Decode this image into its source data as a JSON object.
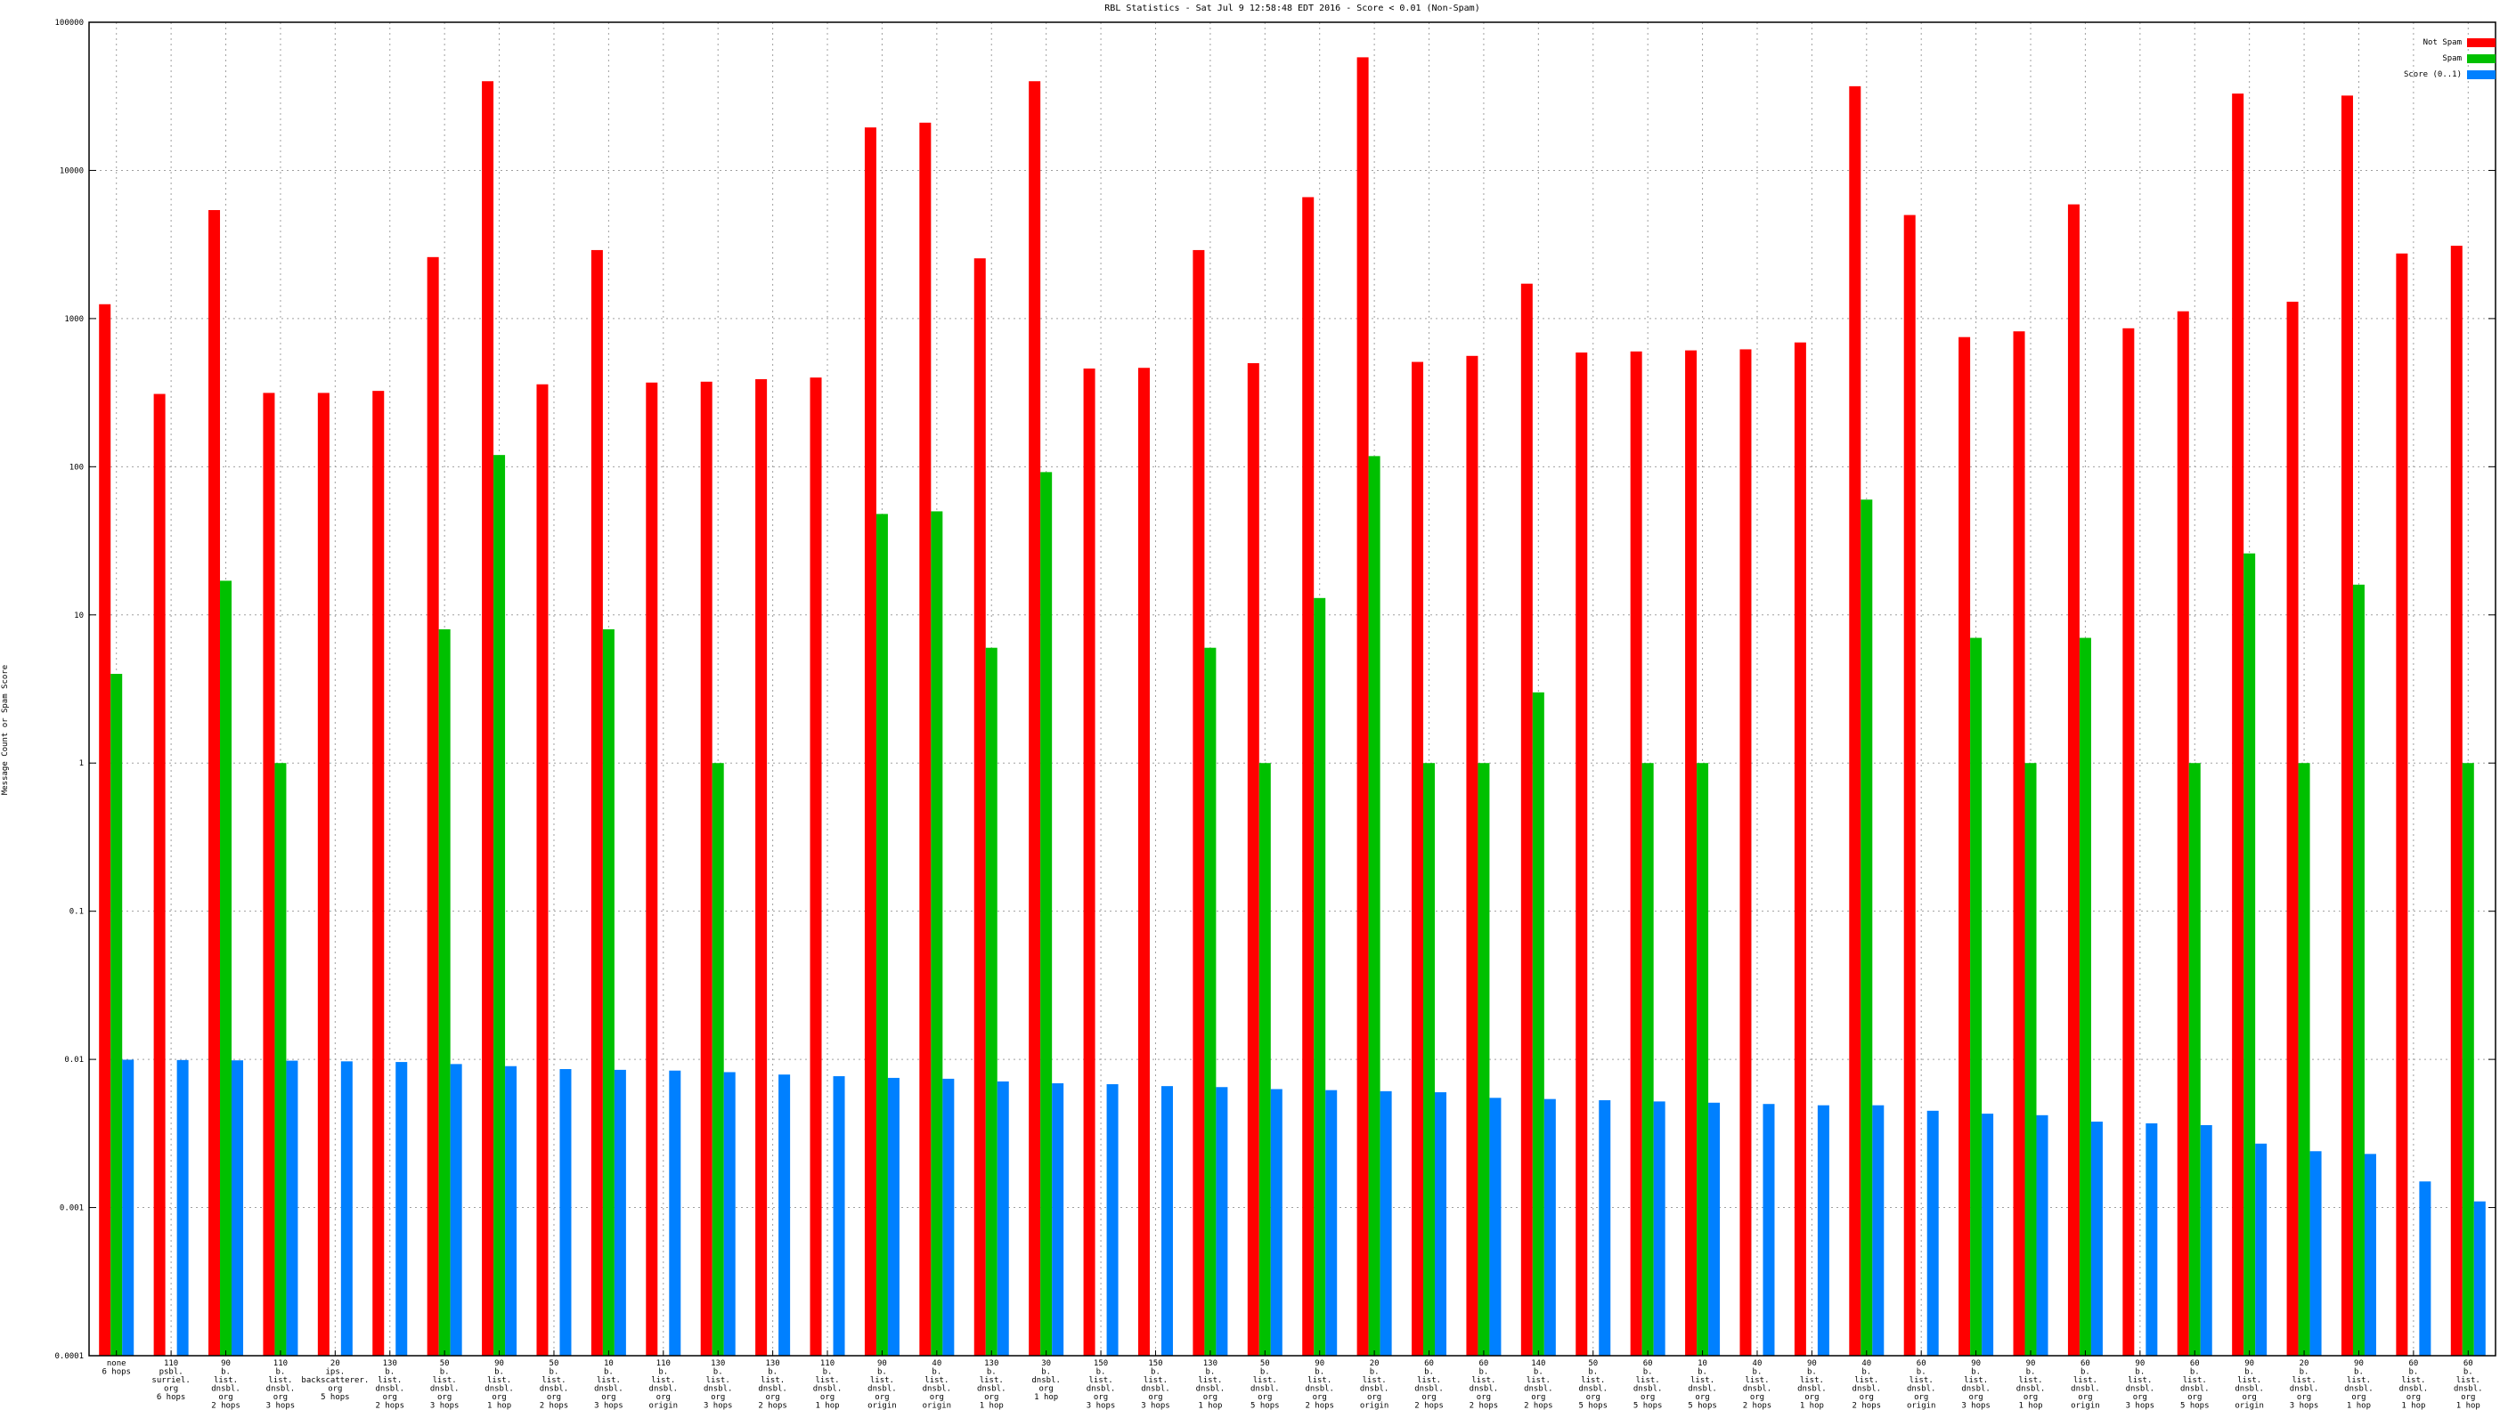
{
  "chart_data": {
    "type": "bar",
    "title": "RBL Statistics - Sat Jul  9 12:58:48 EDT 2016 - Score < 0.01 (Non-Spam)",
    "ylabel": "Message Count or Spam Score",
    "xlabel": "",
    "yscale": "log",
    "ylim": [
      0.0001,
      100000
    ],
    "yticks": [
      "0.0001",
      "0.001",
      "0.01",
      "0.1",
      "1",
      "10",
      "100",
      "1000",
      "10000",
      "100000"
    ],
    "grid": true,
    "legend_position": "top-right",
    "categories": [
      [
        "none",
        "6 hops"
      ],
      [
        "110",
        "psbl.",
        "surriel.",
        "org",
        "6 hops"
      ],
      [
        "90",
        "b.",
        "list.",
        "dnsbl.",
        "org",
        "2 hops"
      ],
      [
        "110",
        "b.",
        "list.",
        "dnsbl.",
        "org",
        "3 hops"
      ],
      [
        "20",
        "ips.",
        "backscatterer.",
        "org",
        "5 hops"
      ],
      [
        "130",
        "b.",
        "list.",
        "dnsbl.",
        "org",
        "2 hops"
      ],
      [
        "50",
        "b.",
        "list.",
        "dnsbl.",
        "org",
        "3 hops"
      ],
      [
        "90",
        "b.",
        "list.",
        "dnsbl.",
        "org",
        "1 hop"
      ],
      [
        "50",
        "b.",
        "list.",
        "dnsbl.",
        "org",
        "2 hops"
      ],
      [
        "10",
        "b.",
        "list.",
        "dnsbl.",
        "org",
        "3 hops"
      ],
      [
        "110",
        "b.",
        "list.",
        "dnsbl.",
        "org",
        "origin"
      ],
      [
        "130",
        "b.",
        "list.",
        "dnsbl.",
        "org",
        "3 hops"
      ],
      [
        "130",
        "b.",
        "list.",
        "dnsbl.",
        "org",
        "2 hops"
      ],
      [
        "110",
        "b.",
        "list.",
        "dnsbl.",
        "org",
        "1 hop"
      ],
      [
        "90",
        "b.",
        "list.",
        "dnsbl.",
        "org",
        "origin"
      ],
      [
        "40",
        "b.",
        "list.",
        "dnsbl.",
        "org",
        "origin"
      ],
      [
        "130",
        "b.",
        "list.",
        "dnsbl.",
        "org",
        "1 hop"
      ],
      [
        "30",
        "b.",
        "dnsbl.",
        "org",
        "1 hop"
      ],
      [
        "150",
        "b.",
        "list.",
        "dnsbl.",
        "org",
        "3 hops"
      ],
      [
        "150",
        "b.",
        "list.",
        "dnsbl.",
        "org",
        "3 hops"
      ],
      [
        "130",
        "b.",
        "list.",
        "dnsbl.",
        "org",
        "1 hop"
      ],
      [
        "50",
        "b.",
        "list.",
        "dnsbl.",
        "org",
        "5 hops"
      ],
      [
        "90",
        "b.",
        "list.",
        "dnsbl.",
        "org",
        "2 hops"
      ],
      [
        "20",
        "b.",
        "list.",
        "dnsbl.",
        "org",
        "origin"
      ],
      [
        "60",
        "b.",
        "list.",
        "dnsbl.",
        "org",
        "2 hops"
      ],
      [
        "60",
        "b.",
        "list.",
        "dnsbl.",
        "org",
        "2 hops"
      ],
      [
        "140",
        "b.",
        "list.",
        "dnsbl.",
        "org",
        "2 hops"
      ],
      [
        "50",
        "b.",
        "list.",
        "dnsbl.",
        "org",
        "5 hops"
      ],
      [
        "60",
        "b.",
        "list.",
        "dnsbl.",
        "org",
        "5 hops"
      ],
      [
        "10",
        "b.",
        "list.",
        "dnsbl.",
        "org",
        "5 hops"
      ],
      [
        "40",
        "b.",
        "list.",
        "dnsbl.",
        "org",
        "2 hops"
      ],
      [
        "90",
        "b.",
        "list.",
        "dnsbl.",
        "org",
        "1 hop"
      ],
      [
        "40",
        "b.",
        "list.",
        "dnsbl.",
        "org",
        "2 hops"
      ],
      [
        "60",
        "b.",
        "list.",
        "dnsbl.",
        "org",
        "origin"
      ],
      [
        "90",
        "b.",
        "list.",
        "dnsbl.",
        "org",
        "3 hops"
      ],
      [
        "90",
        "b.",
        "list.",
        "dnsbl.",
        "org",
        "1 hop"
      ],
      [
        "60",
        "b.",
        "list.",
        "dnsbl.",
        "org",
        "origin"
      ],
      [
        "90",
        "b.",
        "list.",
        "dnsbl.",
        "org",
        "3 hops"
      ],
      [
        "60",
        "b.",
        "list.",
        "dnsbl.",
        "org",
        "5 hops"
      ],
      [
        "90",
        "b.",
        "list.",
        "dnsbl.",
        "org",
        "origin"
      ],
      [
        "20",
        "b.",
        "list.",
        "dnsbl.",
        "org",
        "3 hops"
      ],
      [
        "90",
        "b.",
        "list.",
        "dnsbl.",
        "org",
        "1 hop"
      ],
      [
        "60",
        "b.",
        "list.",
        "dnsbl.",
        "org",
        "1 hop"
      ],
      [
        "60",
        "b.",
        "list.",
        "dnsbl.",
        "org",
        "1 hop"
      ]
    ],
    "series": [
      {
        "name": "Not Spam",
        "color": "#ff0000",
        "values": [
          1250,
          310,
          5400,
          315,
          315,
          325,
          2600,
          40000,
          360,
          2900,
          370,
          375,
          390,
          400,
          19500,
          21000,
          2550,
          40000,
          460,
          465,
          2900,
          500,
          6600,
          58000,
          510,
          560,
          1720,
          590,
          600,
          610,
          620,
          690,
          37000,
          5000,
          750,
          820,
          5900,
          860,
          1120,
          33000,
          1300,
          32000,
          2750,
          3100
        ]
      },
      {
        "name": "Spam",
        "color": "#00c000",
        "values": [
          4,
          null,
          17,
          1,
          null,
          null,
          8,
          120,
          null,
          8,
          null,
          1,
          null,
          null,
          48,
          50,
          6,
          92,
          null,
          null,
          6,
          1,
          13,
          118,
          1,
          1,
          3,
          null,
          1,
          1,
          null,
          null,
          60,
          null,
          7,
          1,
          7,
          null,
          1,
          26,
          1,
          16,
          null,
          1
        ]
      },
      {
        "name": "Score (0..1)",
        "color": "#0080ff",
        "values": [
          0.00995,
          0.0099,
          0.00985,
          0.0098,
          0.0097,
          0.0096,
          0.0093,
          0.009,
          0.0086,
          0.0085,
          0.0084,
          0.0082,
          0.0079,
          0.0077,
          0.0075,
          0.0074,
          0.0071,
          0.0069,
          0.0068,
          0.0066,
          0.0065,
          0.0063,
          0.0062,
          0.0061,
          0.006,
          0.0055,
          0.0054,
          0.0053,
          0.0052,
          0.0051,
          0.005,
          0.0049,
          0.0049,
          0.0045,
          0.0043,
          0.0042,
          0.0038,
          0.0037,
          0.0036,
          0.0027,
          0.0024,
          0.0023,
          0.0015,
          0.0011
        ]
      }
    ]
  }
}
